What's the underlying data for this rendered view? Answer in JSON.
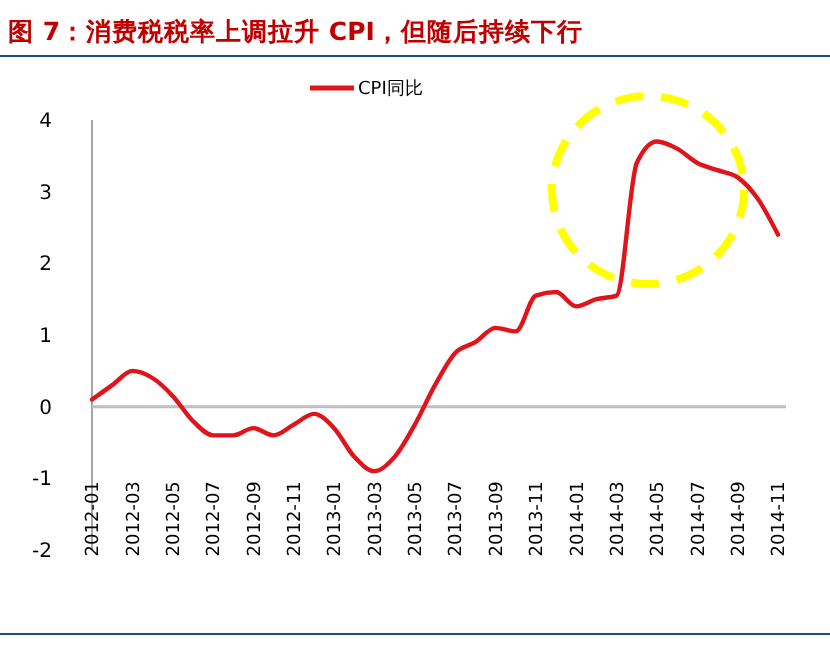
{
  "chart_data": {
    "type": "line",
    "title": "图 7：消费税税率上调拉升 CPI，但随后持续下行",
    "categories": [
      "2012-01",
      null,
      "2012-03",
      null,
      "2012-05",
      null,
      "2012-07",
      null,
      "2012-09",
      null,
      "2012-11",
      null,
      "2013-01",
      null,
      "2013-03",
      null,
      "2013-05",
      null,
      "2013-07",
      null,
      "2013-09",
      null,
      "2013-11",
      null,
      "2014-01",
      null,
      "2014-03",
      null,
      "2014-05",
      null,
      "2014-07",
      null,
      "2014-09",
      null,
      "2014-11"
    ],
    "series": [
      {
        "name": "CPI同比",
        "color": "#e0151b",
        "values": [
          0.1,
          0.3,
          0.5,
          0.4,
          0.15,
          -0.2,
          -0.4,
          -0.4,
          -0.3,
          -0.4,
          -0.25,
          -0.1,
          -0.3,
          -0.7,
          -0.9,
          -0.7,
          -0.25,
          0.3,
          0.75,
          0.9,
          1.1,
          1.05,
          1.55,
          1.6,
          1.4,
          1.5,
          1.55,
          3.4,
          3.7,
          3.6,
          3.4,
          3.3,
          3.2,
          2.9,
          2.4
        ]
      }
    ],
    "ylim": [
      -2,
      4
    ],
    "yticks": [
      -2,
      -1,
      0,
      1,
      2,
      3,
      4
    ],
    "ref_lines": [
      {
        "axis": "y",
        "value": 0,
        "color": "#bfbfbf"
      }
    ],
    "legend": "top",
    "line_style": "solid",
    "marker": "none"
  }
}
